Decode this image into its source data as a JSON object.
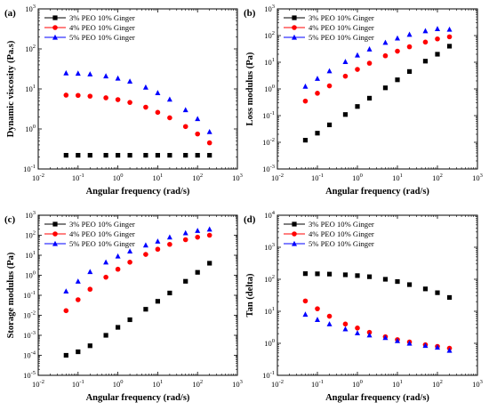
{
  "chart_data": [
    {
      "type": "scatter",
      "panel_label": "(a)",
      "xlabel": "Angular frequency (rad/s)",
      "ylabel": "Dynamic viscosity (Pa.s)",
      "xscale": "log",
      "yscale": "log",
      "xlim": [
        0.01,
        1000
      ],
      "ylim": [
        0.1,
        1000
      ],
      "x_ticks": [
        "10-2",
        "10-1",
        "100",
        "101",
        "102",
        "103"
      ],
      "y_ticks": [
        "10-1",
        "100",
        "101",
        "102",
        "103"
      ],
      "legend_position": "top-left",
      "series": [
        {
          "name": "3% PEO 10% Ginger",
          "color": "#000000",
          "marker": "square",
          "x": [
            0.05,
            0.1,
            0.2,
            0.5,
            1,
            2,
            5,
            10,
            20,
            50,
            100,
            200
          ],
          "y": [
            0.22,
            0.22,
            0.22,
            0.22,
            0.22,
            0.22,
            0.22,
            0.22,
            0.22,
            0.22,
            0.22,
            0.22
          ]
        },
        {
          "name": "4% PEO 10% Ginger",
          "color": "#ff0000",
          "marker": "circle",
          "x": [
            0.05,
            0.1,
            0.2,
            0.5,
            1,
            2,
            5,
            10,
            20,
            50,
            100,
            200
          ],
          "y": [
            7,
            6.9,
            6.6,
            6.0,
            5.4,
            4.6,
            3.5,
            2.6,
            1.9,
            1.15,
            0.75,
            0.45
          ]
        },
        {
          "name": "5% PEO 10% Ginger",
          "color": "#0000ff",
          "marker": "triangle",
          "x": [
            0.05,
            0.1,
            0.2,
            0.5,
            1,
            2,
            5,
            10,
            20,
            50,
            100,
            200
          ],
          "y": [
            25,
            24.5,
            23.5,
            21,
            18.5,
            15.5,
            11,
            8,
            5.5,
            3,
            1.8,
            0.85
          ]
        }
      ]
    },
    {
      "type": "scatter",
      "panel_label": "(b)",
      "xlabel": "Angular frequency (rad/s)",
      "ylabel": "Loss modulus (Pa)",
      "xscale": "log",
      "yscale": "log",
      "xlim": [
        0.01,
        1000
      ],
      "ylim": [
        0.001,
        1000
      ],
      "x_ticks": [
        "10-2",
        "10-1",
        "100",
        "101",
        "102",
        "103"
      ],
      "y_ticks": [
        "10-3",
        "10-2",
        "10-1",
        "100",
        "101",
        "102",
        "103"
      ],
      "legend_position": "top-left",
      "series": [
        {
          "name": "3% PEO 10% Ginger",
          "color": "#000000",
          "marker": "square",
          "x": [
            0.05,
            0.1,
            0.2,
            0.5,
            1,
            2,
            5,
            10,
            20,
            50,
            100,
            200
          ],
          "y": [
            0.012,
            0.022,
            0.045,
            0.11,
            0.22,
            0.45,
            1.1,
            2.2,
            4.5,
            11,
            20,
            40
          ]
        },
        {
          "name": "4% PEO 10% Ginger",
          "color": "#ff0000",
          "marker": "circle",
          "x": [
            0.05,
            0.1,
            0.2,
            0.5,
            1,
            2,
            5,
            10,
            20,
            50,
            100,
            200
          ],
          "y": [
            0.35,
            0.69,
            1.3,
            3.0,
            5.4,
            9.2,
            17.5,
            26,
            38,
            57,
            75,
            90
          ]
        },
        {
          "name": "5% PEO 10% Ginger",
          "color": "#0000ff",
          "marker": "triangle",
          "x": [
            0.05,
            0.1,
            0.2,
            0.5,
            1,
            2,
            5,
            10,
            20,
            50,
            100,
            200
          ],
          "y": [
            1.25,
            2.45,
            4.7,
            10.5,
            18.5,
            31,
            55,
            80,
            110,
            150,
            180,
            170
          ]
        }
      ]
    },
    {
      "type": "scatter",
      "panel_label": "(c)",
      "xlabel": "Angular frequency (rad/s)",
      "ylabel": "Storage modulus (Pa)",
      "xscale": "log",
      "yscale": "log",
      "xlim": [
        0.01,
        1000
      ],
      "ylim": [
        1e-05,
        1000
      ],
      "x_ticks": [
        "10-2",
        "10-1",
        "100",
        "101",
        "102",
        "103"
      ],
      "y_ticks": [
        "10-5",
        "10-4",
        "10-3",
        "10-2",
        "10-1",
        "100",
        "101",
        "102",
        "103"
      ],
      "legend_position": "top-left",
      "series": [
        {
          "name": "3% PEO 10% Ginger",
          "color": "#000000",
          "marker": "square",
          "x": [
            0.05,
            0.1,
            0.2,
            0.5,
            1,
            2,
            5,
            10,
            20,
            50,
            100,
            200
          ],
          "y": [
            0.0001,
            0.00015,
            0.0003,
            0.001,
            0.0025,
            0.006,
            0.02,
            0.05,
            0.13,
            0.5,
            1.4,
            4
          ]
        },
        {
          "name": "4% PEO 10% Ginger",
          "color": "#ff0000",
          "marker": "circle",
          "x": [
            0.05,
            0.1,
            0.2,
            0.5,
            1,
            2,
            5,
            10,
            20,
            50,
            100,
            200
          ],
          "y": [
            0.017,
            0.06,
            0.2,
            0.8,
            2,
            4.5,
            11,
            20,
            35,
            60,
            80,
            100
          ]
        },
        {
          "name": "5% PEO 10% Ginger",
          "color": "#0000ff",
          "marker": "triangle",
          "x": [
            0.05,
            0.1,
            0.2,
            0.5,
            1,
            2,
            5,
            10,
            20,
            50,
            100,
            200
          ],
          "y": [
            0.16,
            0.5,
            1.5,
            4.5,
            9,
            16,
            32,
            50,
            80,
            130,
            170,
            200
          ]
        }
      ]
    },
    {
      "type": "scatter",
      "panel_label": "(d)",
      "xlabel": "Angular frequency (rad/s)",
      "ylabel": "Tan (delta)",
      "xscale": "log",
      "yscale": "log",
      "xlim": [
        0.01,
        1000
      ],
      "ylim": [
        0.1,
        10000
      ],
      "x_ticks": [
        "10-2",
        "10-1",
        "100",
        "101",
        "102",
        "103"
      ],
      "y_ticks": [
        "10-1",
        "100",
        "101",
        "102",
        "103",
        "104"
      ],
      "legend_position": "top-left",
      "series": [
        {
          "name": "3% PEO 10% Ginger",
          "color": "#000000",
          "marker": "square",
          "x": [
            0.05,
            0.1,
            0.2,
            0.5,
            1,
            2,
            5,
            10,
            20,
            50,
            100,
            200
          ],
          "y": [
            150,
            148,
            145,
            138,
            130,
            120,
            100,
            85,
            68,
            50,
            38,
            27
          ]
        },
        {
          "name": "4% PEO 10% Ginger",
          "color": "#ff0000",
          "marker": "circle",
          "x": [
            0.05,
            0.1,
            0.2,
            0.5,
            1,
            2,
            5,
            10,
            20,
            50,
            100,
            200
          ],
          "y": [
            21,
            12,
            7,
            4,
            3,
            2.2,
            1.6,
            1.3,
            1.1,
            0.9,
            0.8,
            0.7
          ]
        },
        {
          "name": "5% PEO 10% Ginger",
          "color": "#0000ff",
          "marker": "triangle",
          "x": [
            0.05,
            0.1,
            0.2,
            0.5,
            1,
            2,
            5,
            10,
            20,
            50,
            100,
            200
          ],
          "y": [
            8,
            5.5,
            4,
            2.8,
            2.1,
            1.8,
            1.5,
            1.2,
            1.0,
            0.85,
            0.75,
            0.6
          ]
        }
      ]
    }
  ]
}
